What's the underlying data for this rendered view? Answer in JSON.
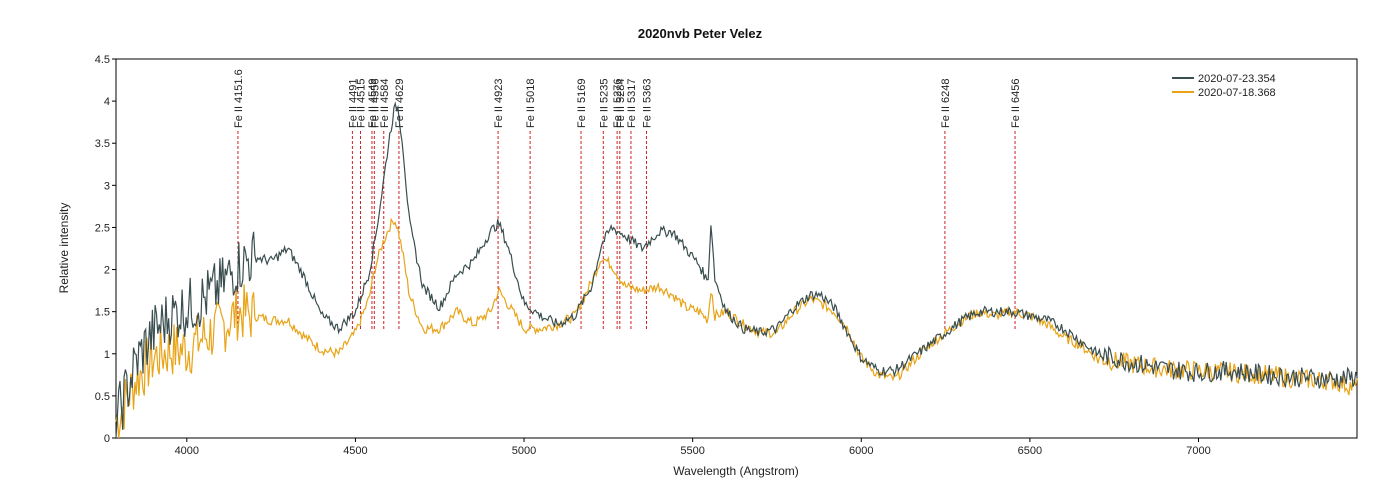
{
  "chart_data": {
    "type": "line",
    "title": "2020nvb   Peter Velez",
    "xlabel": "Wavelength (Angstrom)",
    "ylabel": "Relative intensity",
    "xlim": [
      3790,
      7470
    ],
    "ylim": [
      0,
      4.5
    ],
    "xticks": [
      4000,
      4500,
      5000,
      5500,
      6000,
      6500,
      7000
    ],
    "yticks": [
      0,
      0.5,
      1,
      1.5,
      2,
      2.5,
      3,
      3.5,
      4,
      4.5
    ],
    "ytick_labels": [
      "0",
      "0.5",
      "1",
      "1.5",
      "2",
      "2.5",
      "3",
      "3.5",
      "4",
      "4.5"
    ],
    "legend_position": "top-right",
    "series": [
      {
        "name": "2020-07-23.354",
        "color": "#3b4e4f",
        "x": [
          3790,
          3850,
          3900,
          3950,
          4000,
          4050,
          4100,
          4150,
          4200,
          4250,
          4300,
          4350,
          4400,
          4450,
          4500,
          4540,
          4560,
          4580,
          4600,
          4615,
          4625,
          4640,
          4660,
          4700,
          4750,
          4800,
          4850,
          4900,
          4925,
          4950,
          5000,
          5050,
          5100,
          5150,
          5200,
          5230,
          5260,
          5300,
          5350,
          5400,
          5440,
          5480,
          5520,
          5545,
          5555,
          5565,
          5600,
          5650,
          5700,
          5750,
          5800,
          5850,
          5880,
          5920,
          5960,
          6000,
          6050,
          6100,
          6150,
          6200,
          6250,
          6300,
          6350,
          6400,
          6450,
          6500,
          6550,
          6600,
          6650,
          6700,
          6800,
          6900,
          7000,
          7100,
          7200,
          7300,
          7400,
          7470
        ],
        "y": [
          0.2,
          0.9,
          1.25,
          1.45,
          1.55,
          1.65,
          1.8,
          2.05,
          2.15,
          2.1,
          2.25,
          1.9,
          1.45,
          1.3,
          1.5,
          1.95,
          2.4,
          2.95,
          3.55,
          3.9,
          3.95,
          3.5,
          2.55,
          1.8,
          1.55,
          1.95,
          2.1,
          2.45,
          2.55,
          2.3,
          1.6,
          1.45,
          1.35,
          1.45,
          1.8,
          2.3,
          2.5,
          2.4,
          2.25,
          2.45,
          2.45,
          2.25,
          2.05,
          1.85,
          2.6,
          1.9,
          1.5,
          1.3,
          1.25,
          1.3,
          1.55,
          1.7,
          1.7,
          1.55,
          1.25,
          0.95,
          0.8,
          0.8,
          0.95,
          1.1,
          1.25,
          1.4,
          1.5,
          1.5,
          1.5,
          1.45,
          1.4,
          1.3,
          1.15,
          1.0,
          0.9,
          0.82,
          0.78,
          0.8,
          0.75,
          0.72,
          0.7,
          0.72
        ]
      },
      {
        "name": "2020-07-18.368",
        "color": "#e8a317",
        "x": [
          3790,
          3850,
          3900,
          3950,
          4000,
          4050,
          4100,
          4150,
          4200,
          4250,
          4300,
          4350,
          4400,
          4450,
          4500,
          4540,
          4560,
          4580,
          4600,
          4615,
          4625,
          4640,
          4660,
          4700,
          4750,
          4800,
          4850,
          4900,
          4925,
          4950,
          5000,
          5050,
          5100,
          5150,
          5200,
          5230,
          5260,
          5300,
          5350,
          5400,
          5440,
          5480,
          5520,
          5545,
          5555,
          5565,
          5600,
          5650,
          5700,
          5750,
          5800,
          5850,
          5880,
          5920,
          5960,
          6000,
          6050,
          6100,
          6150,
          6200,
          6250,
          6300,
          6350,
          6400,
          6450,
          6500,
          6550,
          6600,
          6650,
          6700,
          6800,
          6900,
          7000,
          7100,
          7200,
          7300,
          7400,
          7470
        ],
        "y": [
          0.2,
          0.7,
          0.95,
          1.05,
          1.05,
          1.2,
          1.3,
          1.5,
          1.45,
          1.4,
          1.4,
          1.2,
          1.05,
          1.0,
          1.25,
          1.65,
          2.05,
          2.3,
          2.5,
          2.6,
          2.5,
          2.2,
          1.7,
          1.3,
          1.3,
          1.5,
          1.35,
          1.5,
          1.75,
          1.6,
          1.3,
          1.3,
          1.35,
          1.45,
          1.85,
          2.15,
          2.05,
          1.8,
          1.75,
          1.8,
          1.7,
          1.55,
          1.5,
          1.4,
          1.8,
          1.45,
          1.5,
          1.35,
          1.25,
          1.25,
          1.5,
          1.65,
          1.6,
          1.5,
          1.3,
          0.95,
          0.75,
          0.7,
          0.9,
          1.1,
          1.25,
          1.4,
          1.5,
          1.45,
          1.5,
          1.45,
          1.35,
          1.2,
          1.1,
          0.95,
          0.88,
          0.82,
          0.8,
          0.78,
          0.75,
          0.7,
          0.68,
          0.6
        ]
      }
    ],
    "line_markers": [
      {
        "label": "Fe II 4151.6",
        "x": 4151.6
      },
      {
        "label": "Fe II 4491",
        "x": 4491
      },
      {
        "label": "Fe II 4515",
        "x": 4515
      },
      {
        "label": "Fe II 4549",
        "x": 4549
      },
      {
        "label": "Fe II 4556",
        "x": 4556
      },
      {
        "label": "Fe II 4584",
        "x": 4584
      },
      {
        "label": "Fe II 4629",
        "x": 4629
      },
      {
        "label": "Fe II 4923",
        "x": 4923
      },
      {
        "label": "Fe II 5018",
        "x": 5018
      },
      {
        "label": "Fe II 5169",
        "x": 5169
      },
      {
        "label": "Fe II 5235",
        "x": 5235
      },
      {
        "label": "Fe II 5276",
        "x": 5276
      },
      {
        "label": "Fe II 5284",
        "x": 5284
      },
      {
        "label": "Fe II 5317",
        "x": 5317
      },
      {
        "label": "Fe II 5363",
        "x": 5363
      },
      {
        "label": "Fe II 6248",
        "x": 6248
      },
      {
        "label": "Fe II 6456",
        "x": 6456
      }
    ],
    "marker_color": "#cc2222"
  }
}
